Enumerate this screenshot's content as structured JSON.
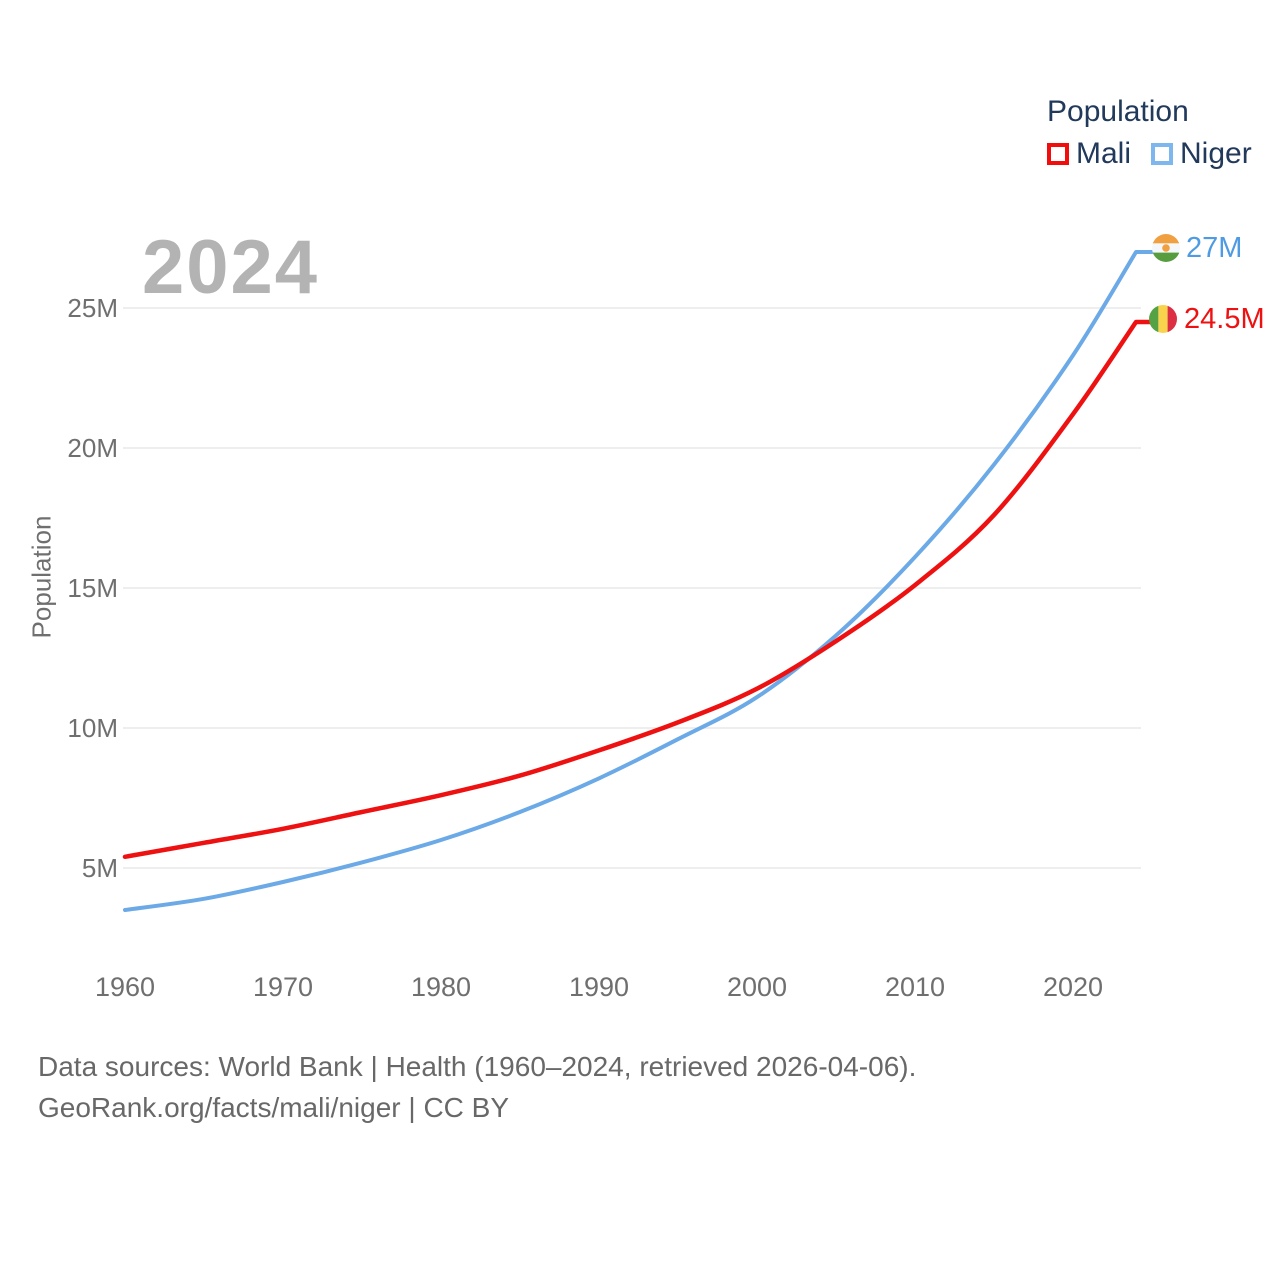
{
  "watermark": "2024",
  "legend": {
    "title": "Population",
    "items": [
      {
        "label": "Mali",
        "color": "#f20d0d"
      },
      {
        "label": "Niger",
        "color": "#7db7ee"
      }
    ]
  },
  "chart_data": {
    "type": "line",
    "title": "Population",
    "xlabel": "",
    "ylabel": "Population",
    "x_range": [
      1960,
      2024
    ],
    "ylim": [
      2,
      28
    ],
    "grid": "horizontal-only",
    "legend_position": "top-right",
    "yticks": [
      {
        "value": 5,
        "label": "5M"
      },
      {
        "value": 10,
        "label": "10M"
      },
      {
        "value": 15,
        "label": "15M"
      },
      {
        "value": 20,
        "label": "20M"
      },
      {
        "value": 25,
        "label": "25M"
      }
    ],
    "xticks": [
      "1960",
      "1970",
      "1980",
      "1990",
      "2000",
      "2010",
      "2020"
    ],
    "series": [
      {
        "name": "Niger",
        "color": "#6ba9e7",
        "line_width": 4,
        "end_label": "27M",
        "end_value": 27.0,
        "points": [
          [
            1960,
            3.5
          ],
          [
            1965,
            3.9
          ],
          [
            1970,
            4.5
          ],
          [
            1975,
            5.2
          ],
          [
            1980,
            6.0
          ],
          [
            1985,
            7.0
          ],
          [
            1990,
            8.2
          ],
          [
            1995,
            9.6
          ],
          [
            2000,
            11.1
          ],
          [
            2005,
            13.3
          ],
          [
            2010,
            16.1
          ],
          [
            2015,
            19.4
          ],
          [
            2020,
            23.3
          ],
          [
            2024,
            27.0
          ]
        ]
      },
      {
        "name": "Mali",
        "color": "#ee1111",
        "line_width": 4.5,
        "end_label": "24.5M",
        "end_value": 24.5,
        "points": [
          [
            1960,
            5.4
          ],
          [
            1965,
            5.9
          ],
          [
            1970,
            6.4
          ],
          [
            1975,
            7.0
          ],
          [
            1980,
            7.6
          ],
          [
            1985,
            8.3
          ],
          [
            1990,
            9.2
          ],
          [
            1995,
            10.2
          ],
          [
            2000,
            11.4
          ],
          [
            2005,
            13.1
          ],
          [
            2010,
            15.1
          ],
          [
            2015,
            17.6
          ],
          [
            2020,
            21.2
          ],
          [
            2024,
            24.5
          ]
        ]
      }
    ]
  },
  "flags": {
    "niger": {
      "orange": "#f0a040",
      "white": "#f5f8fa",
      "green": "#579d3f"
    },
    "mali": {
      "green": "#55a245",
      "yellow": "#fad34c",
      "red": "#dc2f43"
    }
  },
  "colors": {
    "gridline": "#e9e9e9",
    "axis_text": "#6f6f6f",
    "legend_text": "#21395b",
    "watermark": "#b3b3b3",
    "niger_label": "#4f9be3",
    "mali_label": "#ee1111"
  },
  "footer": {
    "line1": "Data sources: World Bank | Health (1960–2024, retrieved 2026-04-06).",
    "line2": "GeoRank.org/facts/mali/niger | CC BY"
  }
}
